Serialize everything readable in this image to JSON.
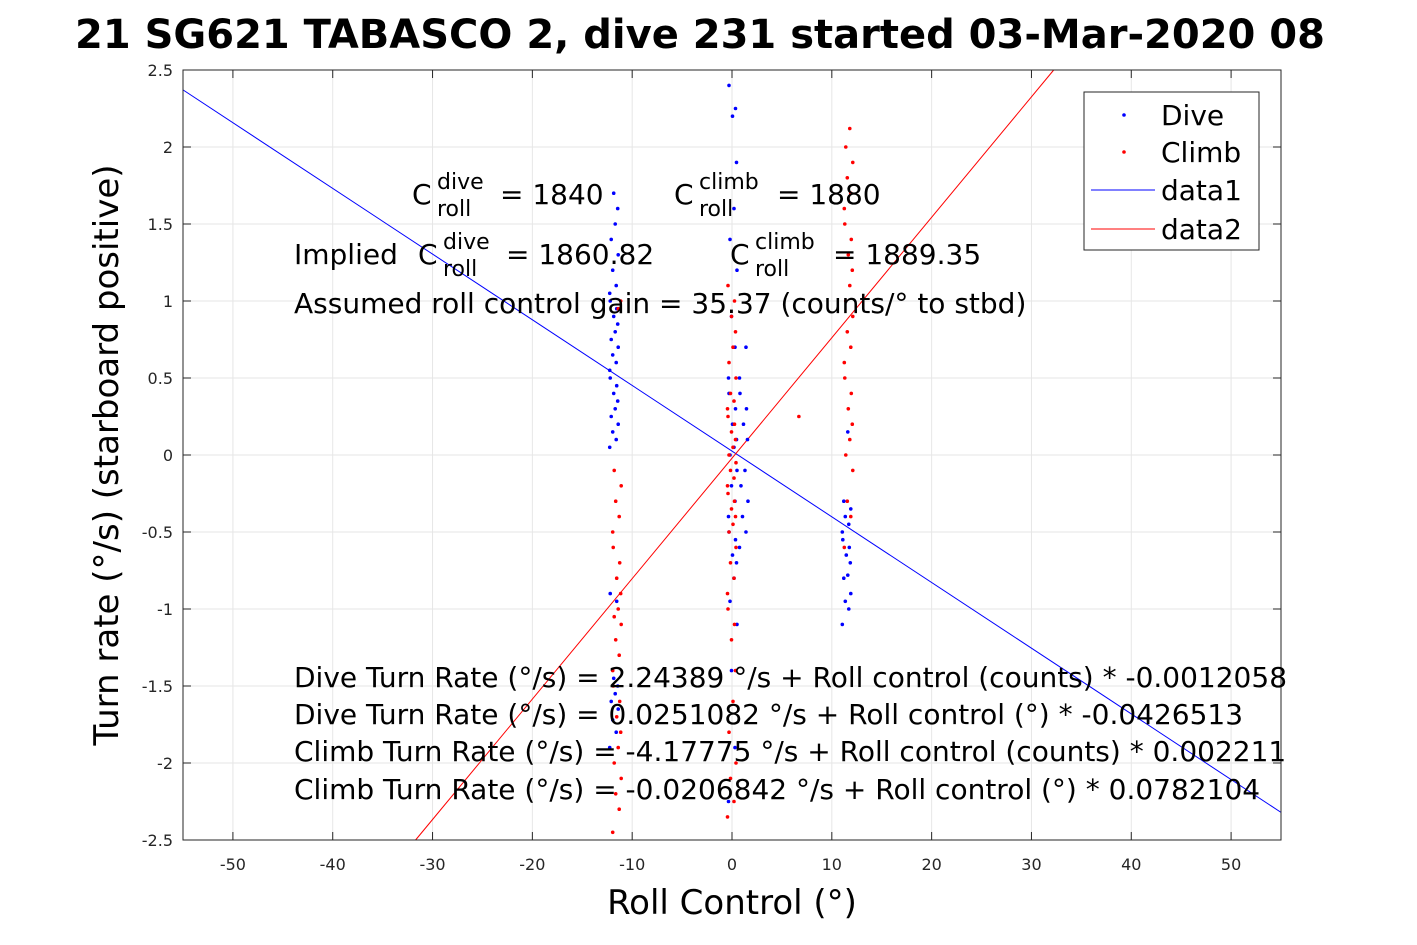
{
  "chart_data": {
    "type": "scatter",
    "title": "21 SG621 TABASCO 2, dive 231 started 03-Mar-2020 08",
    "xlabel": "Roll Control (°)",
    "ylabel": "Turn rate (°/s) (starboard positive)",
    "xlim": [
      -55,
      55
    ],
    "ylim": [
      -2.5,
      2.5
    ],
    "xticks": [
      -50,
      -40,
      -30,
      -20,
      -10,
      0,
      10,
      20,
      30,
      40,
      50
    ],
    "yticks": [
      -2.5,
      -2,
      -1.5,
      -1,
      -0.5,
      0,
      0.5,
      1,
      1.5,
      2,
      2.5
    ],
    "xtick_labels": [
      "-50",
      "-40",
      "-30",
      "-20",
      "-10",
      "0",
      "10",
      "20",
      "30",
      "40",
      "50"
    ],
    "ytick_labels": [
      "-2.5",
      "-2",
      "-1.5",
      "-1",
      "-0.5",
      "0",
      "0.5",
      "1",
      "1.5",
      "2",
      "2.5"
    ],
    "grid": true,
    "legend_position": "top-right",
    "colors": {
      "dive": "#0000ff",
      "climb": "#ff0000"
    },
    "series": [
      {
        "name": "Dive",
        "kind": "points",
        "color": "#0000ff",
        "clusters": [
          {
            "x": -11.8,
            "y": [
              -1.9,
              -1.8,
              -1.72,
              -1.65,
              -1.6,
              -1.55,
              -1.5,
              -1.45,
              -0.95,
              -0.9,
              0.05,
              0.1,
              0.15,
              0.2,
              0.25,
              0.3,
              0.35,
              0.4,
              0.45,
              0.5,
              0.55,
              0.6,
              0.65,
              0.7,
              0.75,
              0.8,
              0.85,
              0.9,
              0.95,
              1.0,
              1.05,
              1.1,
              1.2,
              1.3,
              1.4,
              1.5,
              1.6,
              1.7
            ]
          },
          {
            "x": 0.1,
            "y": [
              -2.25,
              -1.9,
              -1.4,
              -1.1,
              -0.95,
              -0.8,
              -0.7,
              -0.65,
              -0.55,
              -0.5,
              -0.4,
              -0.3,
              -0.2,
              -0.1,
              0.0,
              0.05,
              0.1,
              0.2,
              0.3,
              0.4,
              0.5,
              0.7,
              0.9,
              1.2,
              1.4,
              1.6,
              1.9,
              2.2,
              2.25,
              2.4
            ]
          },
          {
            "x": 1.2,
            "y": [
              -0.6,
              -0.5,
              -0.4,
              -0.3,
              -0.2,
              -0.1,
              0.1,
              0.2,
              0.3,
              0.4,
              0.5,
              0.7
            ]
          },
          {
            "x": 11.5,
            "y": [
              -1.1,
              -1.0,
              -0.95,
              -0.9,
              -0.8,
              -0.78,
              -0.7,
              -0.65,
              -0.6,
              -0.55,
              -0.5,
              -0.45,
              -0.4,
              -0.35,
              -0.3,
              0.15
            ]
          }
        ]
      },
      {
        "name": "Climb",
        "kind": "points",
        "color": "#ff0000",
        "clusters": [
          {
            "x": -11.5,
            "y": [
              -2.45,
              -2.3,
              -2.2,
              -2.1,
              -2.0,
              -1.9,
              -1.8,
              -1.7,
              -1.6,
              -1.5,
              -1.4,
              -1.3,
              -1.2,
              -1.1,
              -1.05,
              -1.0,
              -0.9,
              -0.8,
              -0.7,
              -0.6,
              -0.5,
              -0.4,
              -0.3,
              -0.2,
              -0.1,
              0.95,
              1.0
            ]
          },
          {
            "x": 0.0,
            "y": [
              -2.35,
              -2.25,
              -2.1,
              -2.0,
              -1.8,
              -1.6,
              -1.4,
              -1.2,
              -1.1,
              -1.0,
              -0.9,
              -0.8,
              -0.7,
              -0.6,
              -0.5,
              -0.45,
              -0.4,
              -0.35,
              -0.3,
              -0.25,
              -0.2,
              -0.15,
              -0.1,
              -0.05,
              0.0,
              0.05,
              0.1,
              0.15,
              0.2,
              0.25,
              0.3,
              0.35,
              0.4,
              0.5,
              0.6,
              0.7,
              0.8,
              0.9,
              1.0,
              1.1
            ]
          },
          {
            "x": 11.7,
            "y": [
              -0.6,
              -0.4,
              -0.3,
              -0.1,
              0.0,
              0.1,
              0.2,
              0.3,
              0.4,
              0.5,
              0.6,
              0.7,
              0.8,
              0.9,
              1.0,
              1.1,
              1.2,
              1.3,
              1.4,
              1.5,
              1.6,
              1.7,
              1.8,
              1.9,
              2.0,
              2.12
            ]
          },
          {
            "x": 6.7,
            "y": [
              0.25
            ]
          }
        ]
      },
      {
        "name": "data1",
        "kind": "line",
        "color": "#0000ff",
        "intercept": 0.0251082,
        "slope": -0.0426513
      },
      {
        "name": "data2",
        "kind": "line",
        "color": "#ff0000",
        "intercept": -0.0206842,
        "slope": 0.0782104
      }
    ]
  },
  "annotations": {
    "c_dive": {
      "base": "C",
      "sup": "dive",
      "sub": "roll",
      "value": "= 1840"
    },
    "c_climb": {
      "base": "C",
      "sup": "climb",
      "sub": "roll",
      "value": "= 1880"
    },
    "implied_prefix": "Implied",
    "implied_dive": {
      "base": "C",
      "sup": "dive",
      "sub": "roll",
      "value": "= 1860.82"
    },
    "implied_climb": {
      "base": "C",
      "sup": "climb",
      "sub": "roll",
      "value": "= 1889.35"
    },
    "gain": "Assumed roll control gain = 35.37 (counts/° to stbd)",
    "eq1": "Dive Turn Rate (°/s) = 2.24389 °/s + Roll control (counts) * -0.0012058",
    "eq2": "Dive Turn Rate (°/s) = 0.0251082 °/s + Roll control (°) * -0.0426513",
    "eq3": "Climb Turn Rate (°/s) = -4.17775 °/s + Roll control (counts) * 0.002211",
    "eq4": "Climb Turn Rate (°/s) = -0.0206842 °/s + Roll control (°) * 0.0782104"
  }
}
